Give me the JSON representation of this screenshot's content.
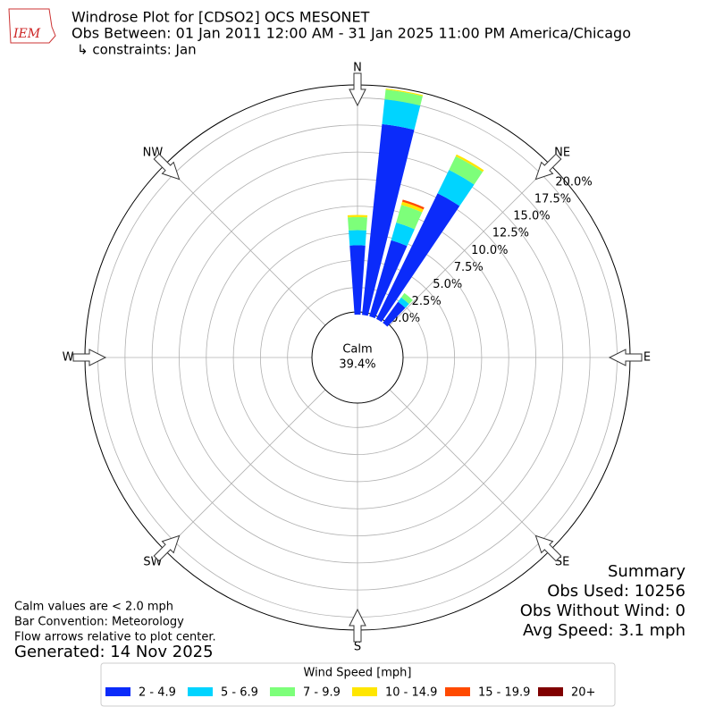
{
  "logo_text": "IEM",
  "title": "Windrose Plot for [CDSO2] OCS MESONET",
  "subtitle": "Obs Between: 01 Jan 2011 12:00 AM - 31 Jan 2025 11:00 PM America/Chicago",
  "constraints": "↳ constraints: Jan",
  "chart_data": {
    "type": "windrose",
    "directions": [
      0,
      10,
      20,
      30,
      40
    ],
    "series": [
      {
        "name": "2 - 4.9",
        "color": "#0b2bfa",
        "values": [
          6.4,
          17.7,
          7.3,
          12.9,
          2.4
        ]
      },
      {
        "name": "5 - 6.9",
        "color": "#00d4ff",
        "values": [
          1.4,
          2.3,
          1.7,
          2.4,
          0.5
        ]
      },
      {
        "name": "7 - 9.9",
        "color": "#7dff7a",
        "values": [
          1.2,
          0.9,
          1.7,
          1.4,
          0.5
        ]
      },
      {
        "name": "10 - 14.9",
        "color": "#ffe600",
        "values": [
          0.2,
          0.1,
          0.3,
          0.2,
          0
        ]
      },
      {
        "name": "15 - 19.9",
        "color": "#ff4a00",
        "values": [
          0,
          0,
          0.2,
          0,
          0
        ]
      },
      {
        "name": "20+",
        "color": "#800000",
        "values": [
          0,
          0,
          0,
          0,
          0
        ]
      }
    ],
    "rlim": [
      0,
      21.2
    ],
    "rticks": [
      {
        "value": 0,
        "label": "0.0%"
      },
      {
        "value": 2.5,
        "label": "2.5%"
      },
      {
        "value": 5,
        "label": "5.0%"
      },
      {
        "value": 7.5,
        "label": "7.5%"
      },
      {
        "value": 10,
        "label": "10.0%"
      },
      {
        "value": 12.5,
        "label": "12.5%"
      },
      {
        "value": 15,
        "label": "15.0%"
      },
      {
        "value": 17.5,
        "label": "17.5%"
      },
      {
        "value": 20,
        "label": "20.0%"
      }
    ],
    "compass": [
      "N",
      "NE",
      "E",
      "SE",
      "S",
      "SW",
      "W",
      "NW"
    ],
    "calm_label": "Calm",
    "calm_value": "39.4%",
    "legend_title": "Wind Speed [mph]"
  },
  "notes": [
    "Calm values are < 2.0 mph",
    "Bar Convention: Meteorology",
    "Flow arrows relative to plot center."
  ],
  "generated": "Generated: 14 Nov 2025",
  "summary": [
    "Summary",
    "Obs Used: 10256",
    "Obs Without Wind: 0",
    "Avg Speed: 3.1 mph"
  ]
}
